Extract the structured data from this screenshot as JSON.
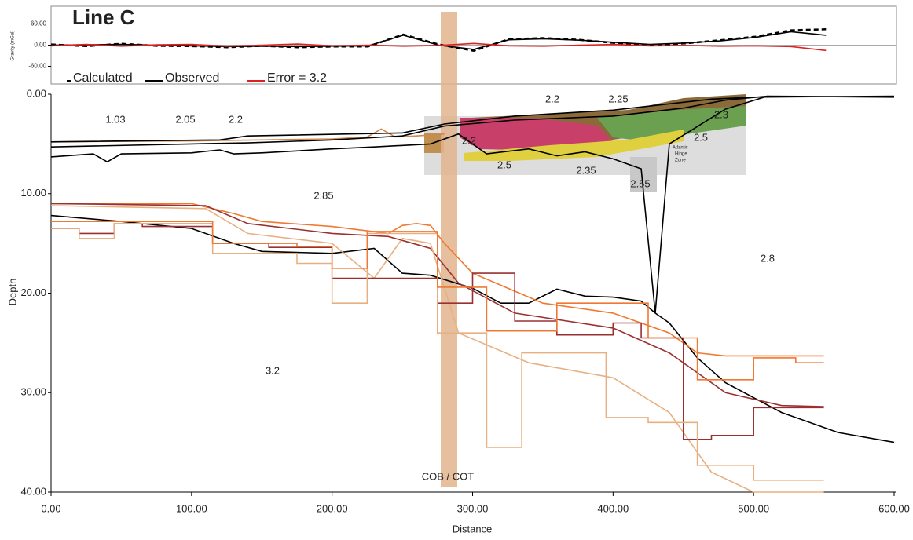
{
  "chart_data": [
    {
      "type": "line",
      "title": "Line C",
      "y_label": "Gravity (mGal)",
      "xlim": [
        0,
        600
      ],
      "ylim": [
        -110,
        110
      ],
      "yticks": [
        {
          "value": 60,
          "label": "60.00"
        },
        {
          "value": 0,
          "label": "0.00"
        },
        {
          "value": -60,
          "label": "-60.00"
        }
      ],
      "x": [
        0,
        25,
        50,
        75,
        100,
        125,
        150,
        175,
        200,
        225,
        250,
        275,
        300,
        325,
        350,
        375,
        400,
        425,
        450,
        475,
        500,
        525,
        550
      ],
      "series": [
        {
          "name": "Calculated",
          "color": "#000000",
          "dashed": true,
          "values": [
            2,
            -3,
            4,
            -2,
            -3,
            -6,
            -2,
            -6,
            -4,
            -4,
            30,
            2,
            -16,
            17,
            20,
            15,
            6,
            0,
            5,
            14,
            24,
            42,
            45
          ]
        },
        {
          "name": "Observed",
          "color": "#000000",
          "dashed": false,
          "values": [
            0,
            1,
            2,
            0,
            -2,
            -4,
            -3,
            -4,
            -3,
            -2,
            28,
            0,
            -12,
            15,
            18,
            14,
            8,
            2,
            6,
            12,
            22,
            38,
            28
          ]
        },
        {
          "name": "Error = 3.2",
          "color": "#e02020",
          "dashed": false,
          "values": [
            -2,
            2,
            -3,
            1,
            2,
            -3,
            0,
            3,
            -2,
            0,
            -3,
            -1,
            5,
            -2,
            -3,
            0,
            2,
            -2,
            -1,
            -3,
            -2,
            -4,
            -15
          ]
        }
      ]
    },
    {
      "type": "line",
      "x_label": "Distance",
      "y_label": "Depth",
      "xlim": [
        0,
        600
      ],
      "ylim": [
        0,
        40
      ],
      "invert_y": true,
      "xticks": [
        {
          "value": 0,
          "label": "0.00"
        },
        {
          "value": 100,
          "label": "100.00"
        },
        {
          "value": 200,
          "label": "200.00"
        },
        {
          "value": 300,
          "label": "300.00"
        },
        {
          "value": 400,
          "label": "400.00"
        },
        {
          "value": 500,
          "label": "500.00"
        },
        {
          "value": 600,
          "label": "600.00"
        }
      ],
      "yticks": [
        {
          "value": 0,
          "label": "0.00"
        },
        {
          "value": 10,
          "label": "10.00"
        },
        {
          "value": 20,
          "label": "20.00"
        },
        {
          "value": 30,
          "label": "30.00"
        },
        {
          "value": 40,
          "label": "40.00"
        }
      ],
      "series": [
        {
          "color": "#d08850",
          "x": [
            0,
            100,
            200,
            225,
            235,
            245,
            260,
            280
          ],
          "values": [
            4.8,
            4.7,
            4.5,
            4.3,
            3.5,
            4.3,
            4.2,
            4.0
          ]
        },
        {
          "color": "#000000",
          "x": [
            0,
            120,
            140,
            250,
            280,
            330,
            400,
            470,
            500,
            600
          ],
          "values": [
            4.8,
            4.6,
            4.2,
            3.9,
            3.0,
            2.2,
            1.6,
            0.5,
            0.3,
            0.2
          ]
        },
        {
          "color": "#000000",
          "x": [
            0,
            100,
            140,
            200,
            250,
            280,
            330,
            400,
            450,
            480,
            510,
            600
          ],
          "values": [
            5.3,
            5.0,
            4.9,
            4.6,
            4.2,
            3.2,
            2.6,
            2.2,
            1.4,
            0.6,
            0.2,
            0.3
          ]
        },
        {
          "color": "#000000",
          "x": [
            0,
            30,
            40,
            50,
            100,
            120,
            130,
            150,
            200,
            230,
            270,
            290,
            310,
            340,
            360,
            380,
            400,
            420,
            430,
            440,
            480,
            510
          ],
          "values": [
            6.3,
            6.0,
            6.8,
            6.0,
            5.9,
            5.6,
            6.0,
            5.9,
            5.5,
            5.3,
            5.0,
            4.0,
            6.0,
            5.5,
            6.2,
            5.8,
            6.5,
            7.5,
            22,
            5,
            1.5,
            0.2
          ]
        },
        {
          "color": "#000000",
          "x": [
            0,
            50,
            100,
            130,
            150,
            200,
            230,
            250,
            270,
            300,
            320,
            340,
            360,
            380,
            400,
            420,
            430,
            440,
            460,
            480,
            520,
            560,
            600
          ],
          "values": [
            12.2,
            12.8,
            13.5,
            15,
            15.8,
            16,
            15.5,
            18,
            18.2,
            19.5,
            21,
            21,
            19.6,
            20.3,
            20.4,
            20.8,
            22,
            23,
            26.5,
            29,
            32,
            34,
            35
          ]
        },
        {
          "color": "#f07830",
          "x": [
            0,
            100,
            130,
            150,
            200,
            240,
            250,
            260,
            270,
            280,
            300,
            350,
            400,
            440,
            460,
            480,
            550
          ],
          "values": [
            11,
            11,
            12,
            12.8,
            13.3,
            14,
            13.2,
            13,
            13.2,
            15,
            18,
            21,
            22,
            24,
            26,
            26.3,
            26.3
          ]
        },
        {
          "color": "#9a3030",
          "x": [
            0,
            110,
            140,
            200,
            240,
            250,
            270,
            290,
            330,
            400,
            440,
            480,
            520,
            550
          ],
          "values": [
            11,
            11.2,
            13,
            14,
            14.3,
            14.7,
            15.5,
            19,
            22,
            23.5,
            26,
            30,
            31.3,
            31.4
          ]
        },
        {
          "color": "#e8b080",
          "x": [
            0,
            110,
            140,
            200,
            230,
            250,
            270,
            290,
            340,
            400,
            440,
            470,
            500,
            550
          ],
          "values": [
            11.2,
            11.5,
            14,
            15,
            18.5,
            14.5,
            15,
            24,
            27,
            28.5,
            32,
            38,
            40,
            40
          ]
        },
        {
          "color": "#9a3030",
          "x": [
            0,
            20,
            20,
            45,
            45,
            65,
            65,
            115,
            115,
            155,
            155,
            200,
            200,
            275,
            275,
            300,
            300,
            330,
            330,
            360,
            360,
            400,
            400,
            420,
            420,
            450,
            450,
            470,
            470,
            500,
            500,
            550
          ],
          "values": [
            13.5,
            13.5,
            14,
            14,
            13,
            13,
            13.3,
            13.3,
            15,
            15,
            15.4,
            15.4,
            18.5,
            18.5,
            21,
            21,
            18,
            18,
            22.8,
            22.8,
            24.2,
            24.2,
            23,
            23,
            24.5,
            24.5,
            34.7,
            34.7,
            34.3,
            34.3,
            31.5,
            31.5
          ]
        },
        {
          "color": "#e8b080",
          "x": [
            0,
            20,
            20,
            45,
            45,
            115,
            115,
            175,
            175,
            200,
            200,
            225,
            225,
            275,
            275,
            310,
            310,
            335,
            335,
            395,
            395,
            425,
            425,
            460,
            460,
            500,
            500,
            550
          ],
          "values": [
            13.5,
            13.5,
            14.5,
            14.5,
            13,
            13,
            16,
            16,
            17,
            17,
            21,
            21,
            14,
            14,
            24,
            24,
            35.5,
            35.5,
            26,
            26,
            32.5,
            32.5,
            33,
            33,
            37.3,
            37.3,
            38.8,
            38.8
          ]
        },
        {
          "color": "#f07830",
          "x": [
            0,
            115,
            115,
            175,
            175,
            200,
            200,
            225,
            225,
            275,
            275,
            310,
            310,
            360,
            360,
            425,
            425,
            460,
            460,
            500,
            500,
            530,
            530,
            550
          ],
          "values": [
            12.8,
            12.8,
            15,
            15,
            15.3,
            15.3,
            17.5,
            17.5,
            13.8,
            13.8,
            19.4,
            19.4,
            23.8,
            23.8,
            21,
            21,
            24.5,
            24.5,
            28.7,
            28.7,
            26.5,
            26.5,
            27,
            27
          ]
        }
      ],
      "annotations": [
        "1.03",
        "2.05",
        "2.2",
        "2.2",
        "2.25",
        "2.3",
        "2.2",
        "2.5",
        "2.5",
        "2.35",
        "2.55",
        "2.85",
        "2.8",
        "3.2",
        "COB / COT"
      ]
    }
  ]
}
